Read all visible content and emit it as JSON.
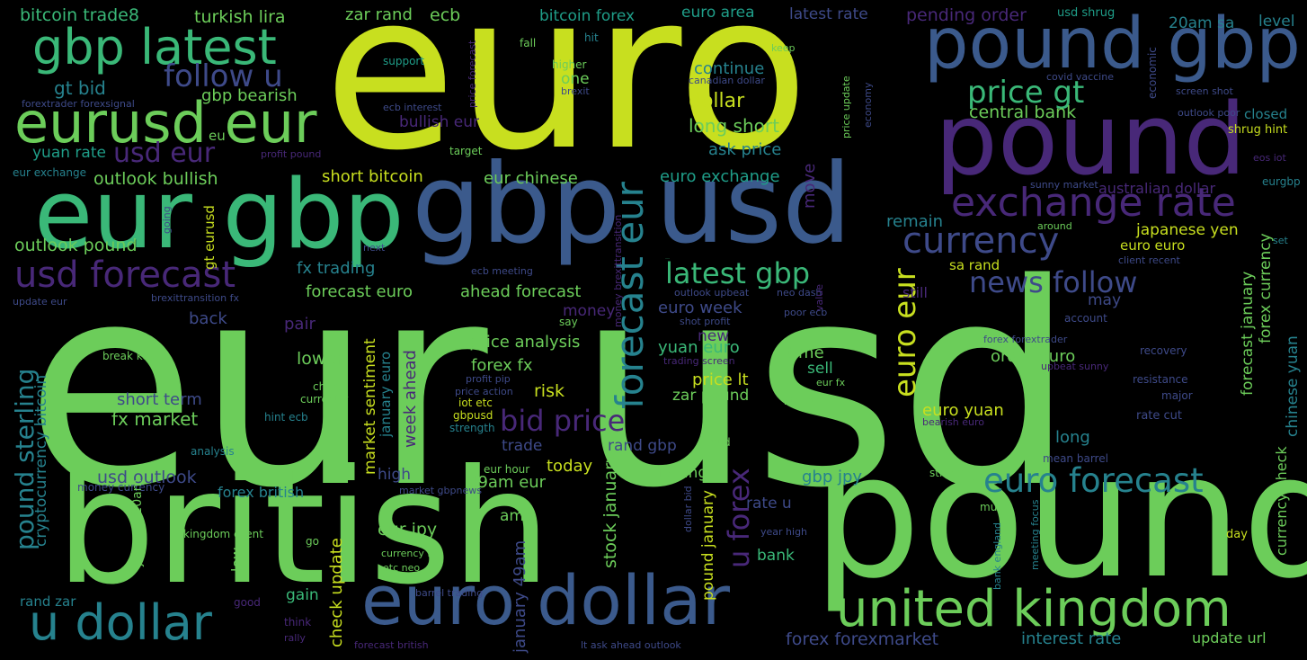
{
  "palette": {
    "yellow": "#c8df1f",
    "lime": "#6ccd5a",
    "green": "#35b779",
    "teal": "#1f9e89",
    "cyan": "#26828e",
    "blue": "#31688e",
    "indigo": "#3e4a89",
    "purple": "#482878",
    "deep": "#440154"
  },
  "words": [
    {
      "text": "euro",
      "color": "#c8df1f"
    },
    {
      "text": "eur usd",
      "color": "#6ccd5a"
    },
    {
      "text": "british",
      "color": "#6ccd5a"
    },
    {
      "text": "pound",
      "color": "#6ccd5a"
    },
    {
      "text": "gbp usd",
      "color": "#3b5a8c"
    },
    {
      "text": "pound",
      "color": "#482878"
    },
    {
      "text": "pound gbp",
      "color": "#3b5a8c"
    },
    {
      "text": "eur gbp",
      "color": "#3ab878"
    },
    {
      "text": "euro dollar",
      "color": "#3b5a8c"
    },
    {
      "text": "eurusd eur",
      "color": "#6ccd5a"
    },
    {
      "text": "gbp latest",
      "color": "#3ab878"
    },
    {
      "text": "united kingdom",
      "color": "#6ccd5a"
    },
    {
      "text": "u dollar",
      "color": "#26828e"
    },
    {
      "text": "exchange rate",
      "color": "#482878"
    },
    {
      "text": "currency",
      "color": "#3e4a89"
    },
    {
      "text": "usd forecast",
      "color": "#482878"
    },
    {
      "text": "forecast eur",
      "color": "#26828e"
    },
    {
      "text": "euro forecast",
      "color": "#26828e"
    },
    {
      "text": "follow u",
      "color": "#3e4a89"
    },
    {
      "text": "price gt",
      "color": "#3ab878"
    },
    {
      "text": "usd eur",
      "color": "#482878"
    },
    {
      "text": "bid price",
      "color": "#482878"
    },
    {
      "text": "news follow",
      "color": "#3e4a89"
    },
    {
      "text": "latest gbp",
      "color": "#3ab878"
    },
    {
      "text": "pound sterling",
      "color": "#26828e"
    },
    {
      "text": "euro eur",
      "color": "#c8df1f"
    },
    {
      "text": "u forex",
      "color": "#482878"
    },
    {
      "text": "bitcoin trade8",
      "color": "#3ab878"
    },
    {
      "text": "turkish lira",
      "color": "#6ccd5a"
    },
    {
      "text": "zar rand",
      "color": "#6ccd5a"
    },
    {
      "text": "ecb",
      "color": "#6ccd5a"
    },
    {
      "text": "bitcoin forex",
      "color": "#1f9e89"
    },
    {
      "text": "euro area",
      "color": "#1f9e89"
    },
    {
      "text": "latest rate",
      "color": "#3e4a89"
    },
    {
      "text": "pending order",
      "color": "#482878"
    },
    {
      "text": "usd shrug",
      "color": "#1f9e89"
    },
    {
      "text": "20am sa",
      "color": "#26828e"
    },
    {
      "text": "level",
      "color": "#26828e"
    },
    {
      "text": "gt bid",
      "color": "#26828e"
    },
    {
      "text": "gbp bearish",
      "color": "#6ccd5a"
    },
    {
      "text": "continue",
      "color": "#26828e"
    },
    {
      "text": "dollar",
      "color": "#c8df1f"
    },
    {
      "text": "long short",
      "color": "#6ccd5a"
    },
    {
      "text": "central bank",
      "color": "#6ccd5a"
    },
    {
      "text": "bullish eur",
      "color": "#482878"
    },
    {
      "text": "ask price",
      "color": "#26828e"
    },
    {
      "text": "outlook bullish",
      "color": "#6ccd5a"
    },
    {
      "text": "short bitcoin",
      "color": "#c8df1f"
    },
    {
      "text": "eur chinese",
      "color": "#6ccd5a"
    },
    {
      "text": "euro exchange",
      "color": "#1f9e89"
    },
    {
      "text": "yuan rate",
      "color": "#1f9e89"
    },
    {
      "text": "outlook pound",
      "color": "#6ccd5a"
    },
    {
      "text": "fx trading",
      "color": "#26828e"
    },
    {
      "text": "forecast euro",
      "color": "#6ccd5a"
    },
    {
      "text": "ahead forecast",
      "color": "#6ccd5a"
    },
    {
      "text": "latest gbp",
      "color": "#3ab878"
    },
    {
      "text": "japanese yen",
      "color": "#c8df1f"
    },
    {
      "text": "euro euro",
      "color": "#c8df1f"
    },
    {
      "text": "sa rand",
      "color": "#c8df1f"
    },
    {
      "text": "remain",
      "color": "#26828e"
    },
    {
      "text": "euro week",
      "color": "#3e4a89"
    },
    {
      "text": "money",
      "color": "#482878"
    },
    {
      "text": "back",
      "color": "#3e4a89"
    },
    {
      "text": "pair",
      "color": "#482878"
    },
    {
      "text": "lower",
      "color": "#6ccd5a"
    },
    {
      "text": "price analysis",
      "color": "#6ccd5a"
    },
    {
      "text": "forex fx",
      "color": "#6ccd5a"
    },
    {
      "text": "risk",
      "color": "#c8df1f"
    },
    {
      "text": "price lt",
      "color": "#c8df1f"
    },
    {
      "text": "yuan euro",
      "color": "#3ab878"
    },
    {
      "text": "order euro",
      "color": "#6ccd5a"
    },
    {
      "text": "time",
      "color": "#6ccd5a"
    },
    {
      "text": "sell",
      "color": "#3ab878"
    },
    {
      "text": "zar pound",
      "color": "#6ccd5a"
    },
    {
      "text": "short term",
      "color": "#3e4a89"
    },
    {
      "text": "fx market",
      "color": "#6ccd5a"
    },
    {
      "text": "trade",
      "color": "#3e4a89"
    },
    {
      "text": "rand gbp",
      "color": "#3e4a89"
    },
    {
      "text": "euro yuan",
      "color": "#c8df1f"
    },
    {
      "text": "long",
      "color": "#26828e"
    },
    {
      "text": "usd outlook",
      "color": "#3e4a89"
    },
    {
      "text": "high",
      "color": "#3e4a89"
    },
    {
      "text": "today",
      "color": "#c8df1f"
    },
    {
      "text": "trading",
      "color": "#6ccd5a"
    },
    {
      "text": "gbp jpy",
      "color": "#26828e"
    },
    {
      "text": "49am eur",
      "color": "#6ccd5a"
    },
    {
      "text": "forex british",
      "color": "#26828e"
    },
    {
      "text": "eur jpy",
      "color": "#6ccd5a"
    },
    {
      "text": "amp",
      "color": "#6ccd5a"
    },
    {
      "text": "rate u",
      "color": "#3e4a89"
    },
    {
      "text": "bank",
      "color": "#3ab878"
    },
    {
      "text": "gain",
      "color": "#3ab878"
    },
    {
      "text": "rand zar",
      "color": "#26828e"
    },
    {
      "text": "forex forexmarket",
      "color": "#3e4a89"
    },
    {
      "text": "interest rate",
      "color": "#26828e"
    },
    {
      "text": "update url",
      "color": "#6ccd5a"
    },
    {
      "text": "closed",
      "color": "#26828e"
    },
    {
      "text": "shrug hint",
      "color": "#c8df1f"
    },
    {
      "text": "australian dollar",
      "color": "#482878"
    },
    {
      "text": "eurgbp",
      "color": "#26828e"
    },
    {
      "text": "set",
      "color": "#26828e"
    },
    {
      "text": "account",
      "color": "#3e4a89"
    },
    {
      "text": "recovery",
      "color": "#3e4a89"
    },
    {
      "text": "resistance",
      "color": "#3e4a89"
    },
    {
      "text": "major",
      "color": "#3e4a89"
    },
    {
      "text": "rate cut",
      "color": "#3e4a89"
    },
    {
      "text": "mean barrel",
      "color": "#3e4a89"
    },
    {
      "text": "day",
      "color": "#c8df1f"
    },
    {
      "text": "eu",
      "color": "#6ccd5a"
    },
    {
      "text": "one",
      "color": "#6ccd5a"
    },
    {
      "text": "fall",
      "color": "#6ccd5a"
    },
    {
      "text": "hit",
      "color": "#26828e"
    },
    {
      "text": "keep",
      "color": "#6ccd5a"
    },
    {
      "text": "support",
      "color": "#1f9e89"
    },
    {
      "text": "higher",
      "color": "#6ccd5a"
    },
    {
      "text": "brexit",
      "color": "#3e4a89"
    },
    {
      "text": "ecb interest",
      "color": "#3e4a89"
    },
    {
      "text": "target",
      "color": "#6ccd5a"
    },
    {
      "text": "canadian dollar",
      "color": "#3e4a89"
    },
    {
      "text": "covid vaccine",
      "color": "#3e4a89"
    },
    {
      "text": "outlook poor",
      "color": "#3e4a89"
    },
    {
      "text": "screen shot",
      "color": "#3e4a89"
    },
    {
      "text": "forextrader forexsignal",
      "color": "#3e4a89"
    },
    {
      "text": "eur exchange",
      "color": "#26828e"
    },
    {
      "text": "profit pound",
      "color": "#482878"
    },
    {
      "text": "eos iot",
      "color": "#482878"
    },
    {
      "text": "sunny market",
      "color": "#3e4a89"
    },
    {
      "text": "next",
      "color": "#3e4a89"
    },
    {
      "text": "ecb meeting",
      "color": "#3e4a89"
    },
    {
      "text": "around",
      "color": "#6ccd5a"
    },
    {
      "text": "client recent",
      "color": "#3e4a89"
    },
    {
      "text": "update eur",
      "color": "#3e4a89"
    },
    {
      "text": "brexittransition fx",
      "color": "#3e4a89"
    },
    {
      "text": "outlook upbeat",
      "color": "#3e4a89"
    },
    {
      "text": "neo dash",
      "color": "#3e4a89"
    },
    {
      "text": "still",
      "color": "#482878"
    },
    {
      "text": "may",
      "color": "#3e4a89"
    },
    {
      "text": "new",
      "color": "#482878"
    },
    {
      "text": "say",
      "color": "#6ccd5a"
    },
    {
      "text": "shot profit",
      "color": "#3e4a89"
    },
    {
      "text": "poor ecb",
      "color": "#3e4a89"
    },
    {
      "text": "break key",
      "color": "#6ccd5a"
    },
    {
      "text": "trading screen",
      "color": "#482878"
    },
    {
      "text": "forex forextrader",
      "color": "#3e4a89"
    },
    {
      "text": "upbeat sunny",
      "color": "#482878"
    },
    {
      "text": "profit pip",
      "color": "#3e4a89"
    },
    {
      "text": "price action",
      "color": "#3e4a89"
    },
    {
      "text": "iot etc",
      "color": "#c8df1f"
    },
    {
      "text": "chart",
      "color": "#6ccd5a"
    },
    {
      "text": "currently",
      "color": "#6ccd5a"
    },
    {
      "text": "hint ecb",
      "color": "#26828e"
    },
    {
      "text": "eur fx",
      "color": "#6ccd5a"
    },
    {
      "text": "btc eth",
      "color": "#6ccd5a"
    },
    {
      "text": "gbpusd",
      "color": "#c8df1f"
    },
    {
      "text": "strength",
      "color": "#26828e"
    },
    {
      "text": "bearish euro",
      "color": "#482878"
    },
    {
      "text": "analysis",
      "color": "#26828e"
    },
    {
      "text": "aud",
      "color": "#6ccd5a"
    },
    {
      "text": "eur hour",
      "color": "#6ccd5a"
    },
    {
      "text": "strong",
      "color": "#6ccd5a"
    },
    {
      "text": "money currency",
      "color": "#3e4a89"
    },
    {
      "text": "market gbpnews",
      "color": "#3e4a89"
    },
    {
      "text": "much",
      "color": "#6ccd5a"
    },
    {
      "text": "kingdom client",
      "color": "#6ccd5a"
    },
    {
      "text": "year high",
      "color": "#3e4a89"
    },
    {
      "text": "go",
      "color": "#6ccd5a"
    },
    {
      "text": "currency fx",
      "color": "#6ccd5a"
    },
    {
      "text": "etc neo",
      "color": "#6ccd5a"
    },
    {
      "text": "good",
      "color": "#482878"
    },
    {
      "text": "barrel trading",
      "color": "#3e4a89"
    },
    {
      "text": "think",
      "color": "#482878"
    },
    {
      "text": "rally",
      "color": "#482878"
    },
    {
      "text": "forecast british",
      "color": "#482878"
    },
    {
      "text": "lt ask ahead outlook",
      "color": "#3e4a89"
    },
    {
      "text": "gt eurusd",
      "color": "#c8df1f"
    },
    {
      "text": "cryptocurrency bitcoin",
      "color": "#26828e"
    },
    {
      "text": "january 20am",
      "color": "#6ccd5a"
    },
    {
      "text": "market sentiment",
      "color": "#c8df1f"
    },
    {
      "text": "january euro",
      "color": "#26828e"
    },
    {
      "text": "week ahead",
      "color": "#482878"
    },
    {
      "text": "check update",
      "color": "#c8df1f"
    },
    {
      "text": "low",
      "color": "#6ccd5a"
    },
    {
      "text": "january 49am",
      "color": "#3e4a89"
    },
    {
      "text": "stock january",
      "color": "#6ccd5a"
    },
    {
      "text": "pound january",
      "color": "#c8df1f"
    },
    {
      "text": "dollar bid",
      "color": "#3e4a89"
    },
    {
      "text": "move",
      "color": "#482878"
    },
    {
      "text": "bank england",
      "color": "#26828e"
    },
    {
      "text": "meeting focus",
      "color": "#26828e"
    },
    {
      "text": "forecast january",
      "color": "#6ccd5a"
    },
    {
      "text": "forex currency",
      "color": "#6ccd5a"
    },
    {
      "text": "currency check",
      "color": "#6ccd5a"
    },
    {
      "text": "chinese yuan",
      "color": "#26828e"
    },
    {
      "text": "price forecast",
      "color": "#482878"
    },
    {
      "text": "economic",
      "color": "#3e4a89"
    },
    {
      "text": "price update",
      "color": "#6ccd5a"
    },
    {
      "text": "economy",
      "color": "#3e4a89"
    },
    {
      "text": "going",
      "color": "#3e4a89"
    },
    {
      "text": "money brexittransition",
      "color": "#482878"
    },
    {
      "text": "value",
      "color": "#482878"
    }
  ]
}
